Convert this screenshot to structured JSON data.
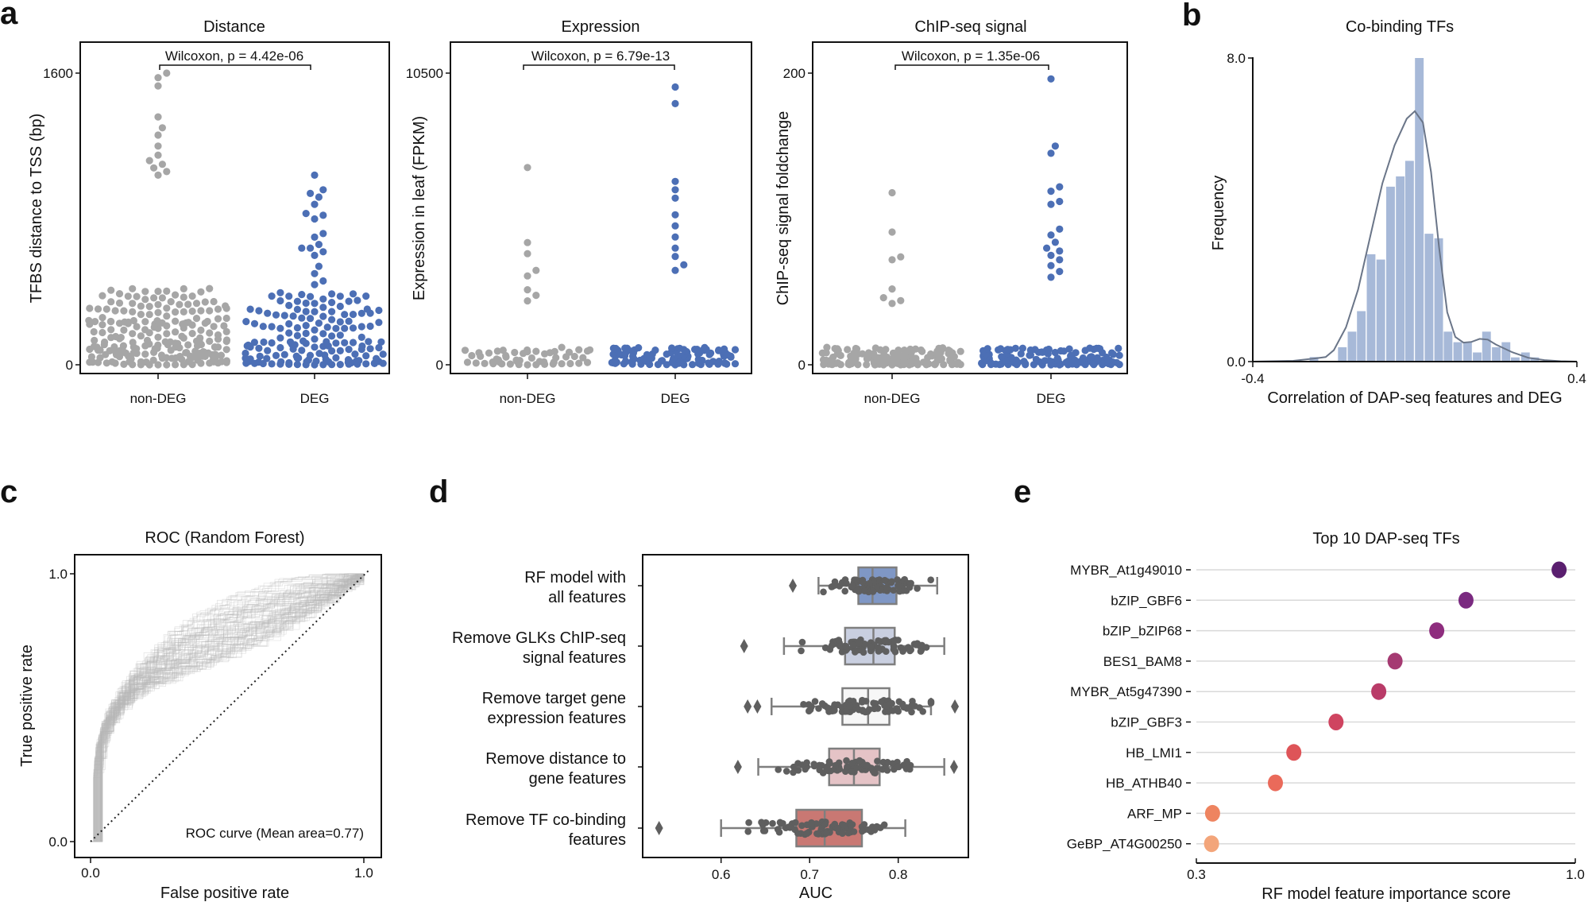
{
  "panel_letters": {
    "a": "a",
    "b": "b",
    "c": "c",
    "d": "d",
    "e": "e"
  },
  "colors": {
    "nonDEG": "#a6a6a6",
    "DEG": "#4c6fb5",
    "hist_bar": "#a7b9d8",
    "kde_line": "#6a7588",
    "roc_line": "#b8b8b8",
    "strip_point": "#5f5f5f",
    "box_edge": "#7f7f7f",
    "box_fills": [
      "#7f97c5",
      "#c9cfe0",
      "#f7f7f7",
      "#e5c3c6",
      "#c97873"
    ],
    "lollipop_colors": [
      "#5a1f6f",
      "#7a2a80",
      "#8e2d7e",
      "#a53a72",
      "#b93b68",
      "#cf4460",
      "#de5458",
      "#ea6a5a",
      "#ee8460",
      "#f3a57a"
    ],
    "lollipop_line": "#d9d9d9"
  },
  "chart_data": [
    {
      "id": "a1",
      "type": "scatter",
      "subtype": "swarm",
      "title": "Distance",
      "xlabel": "",
      "ylabel": "TFBS distance to TSS (bp)",
      "categories": [
        "non-DEG",
        "DEG"
      ],
      "ylim": [
        0,
        1600
      ],
      "yticks": [
        "0",
        "1600"
      ],
      "annotation": "Wilcoxon, p = 4.42e-06",
      "series": [
        {
          "name": "non-DEG",
          "values_summary": {
            "n": 230,
            "bulk_max": 420,
            "upper_points": [
              1040,
              1060,
              1080,
              1100,
              1120,
              1150,
              1200,
              1260,
              1300,
              1360,
              1530,
              1575,
              1600
            ]
          }
        },
        {
          "name": "DEG",
          "values_summary": {
            "n": 170,
            "bulk_max": 400,
            "upper_points": [
              440,
              460,
              500,
              540,
              600,
              620,
              640,
              640,
              660,
              700,
              720,
              800,
              820,
              830,
              880,
              920,
              940,
              960,
              1040
            ]
          }
        }
      ]
    },
    {
      "id": "a2",
      "type": "scatter",
      "subtype": "swarm",
      "title": "Expression",
      "xlabel": "",
      "ylabel": "Expression in leaf (FPKM)",
      "categories": [
        "non-DEG",
        "DEG"
      ],
      "ylim": [
        0,
        10500
      ],
      "yticks": [
        "0",
        "10500"
      ],
      "annotation": "Wilcoxon, p = 6.79e-13",
      "series": [
        {
          "name": "non-DEG",
          "values_summary": {
            "n": 60,
            "max": 7100,
            "upper_points": [
              2300,
              2500,
              2700,
              3200,
              3400,
              4000,
              4400,
              7100
            ]
          }
        },
        {
          "name": "DEG",
          "values_summary": {
            "n": 120,
            "max": 10000,
            "upper_points": [
              3400,
              3600,
              3900,
              4200,
              4600,
              5000,
              5400,
              6000,
              6300,
              6600,
              9400,
              10000
            ]
          }
        }
      ]
    },
    {
      "id": "a3",
      "type": "scatter",
      "subtype": "swarm",
      "title": "ChIP-seq signal",
      "xlabel": "",
      "ylabel": "ChIP-seq signal foldchange",
      "categories": [
        "non-DEG",
        "DEG"
      ],
      "ylim": [
        0,
        200
      ],
      "yticks": [
        "0",
        "200"
      ],
      "annotation": "Wilcoxon, p = 1.35e-06",
      "series": [
        {
          "name": "non-DEG",
          "values_summary": {
            "n": 150,
            "max": 118,
            "upper_points": [
              42,
              44,
              46,
              52,
              72,
              74,
              91,
              118
            ]
          }
        },
        {
          "name": "DEG",
          "values_summary": {
            "n": 150,
            "max": 196,
            "upper_points": [
              60,
              64,
              68,
              72,
              75,
              78,
              80,
              84,
              89,
              93,
              110,
              112,
              119,
              122,
              145,
              150,
              196
            ]
          }
        }
      ]
    },
    {
      "id": "b",
      "type": "bar",
      "subtype": "histogram_with_kde",
      "title": "Co-binding TFs",
      "xlabel": "Correlation of DAP-seq features and DEG",
      "ylabel": "Frequency",
      "xlim": [
        -0.4,
        0.4
      ],
      "ylim": [
        0.0,
        8.0
      ],
      "xticks": [
        "-0.4",
        "0.4"
      ],
      "yticks": [
        "0.0",
        "8.0"
      ],
      "bin_width": 0.0237,
      "x": [
        -0.249,
        -0.179,
        -0.155,
        -0.132,
        -0.108,
        -0.084,
        -0.06,
        -0.036,
        -0.013,
        0.011,
        0.035,
        0.059,
        0.082,
        0.106,
        0.13,
        0.154,
        0.177,
        0.201,
        0.225,
        0.248,
        0.273,
        0.296
      ],
      "values": [
        0.12,
        0.38,
        0.79,
        1.33,
        2.83,
        2.69,
        4.61,
        4.88,
        5.29,
        8.0,
        3.37,
        3.25,
        0.79,
        0.51,
        0.51,
        0.24,
        0.79,
        0.38,
        0.51,
        0.11,
        0.24,
        0.11
      ],
      "kde": {
        "x": [
          -0.4,
          -0.3,
          -0.25,
          -0.22,
          -0.2,
          -0.17,
          -0.14,
          -0.11,
          -0.08,
          -0.05,
          -0.02,
          0.0,
          0.02,
          0.04,
          0.06,
          0.08,
          0.1,
          0.12,
          0.14,
          0.16,
          0.18,
          0.2,
          0.24,
          0.28,
          0.32,
          0.36,
          0.4
        ],
        "y": [
          0.0,
          0.02,
          0.08,
          0.12,
          0.3,
          0.9,
          1.9,
          3.3,
          4.7,
          5.7,
          6.4,
          6.6,
          6.3,
          5.0,
          3.0,
          1.3,
          0.65,
          0.5,
          0.52,
          0.6,
          0.58,
          0.45,
          0.25,
          0.1,
          0.04,
          0.01,
          0.0
        ]
      }
    },
    {
      "id": "c",
      "type": "line",
      "subtype": "roc",
      "title": "ROC (Random Forest)",
      "xlabel": "False positive rate",
      "ylabel": "True positive rate",
      "xlim": [
        0.0,
        1.0
      ],
      "ylim": [
        0.0,
        1.0
      ],
      "xticks": [
        "0.0",
        "1.0"
      ],
      "yticks": [
        "0.0",
        "1.0"
      ],
      "annotation": "ROC curve (Mean area=0.77)",
      "mean_auc": 0.77,
      "n_curves": 100,
      "mean_curve": {
        "x": [
          0.0,
          0.01,
          0.02,
          0.05,
          0.1,
          0.15,
          0.2,
          0.3,
          0.4,
          0.5,
          0.6,
          0.7,
          0.8,
          0.9,
          1.0
        ],
        "y": [
          0.0,
          0.25,
          0.35,
          0.45,
          0.53,
          0.59,
          0.63,
          0.7,
          0.75,
          0.8,
          0.84,
          0.88,
          0.92,
          0.96,
          1.0
        ]
      },
      "diagonal": true
    },
    {
      "id": "d",
      "type": "box",
      "title": "",
      "xlabel": "AUC",
      "ylabel": "",
      "xlim": [
        0.52,
        0.88
      ],
      "xticks": [
        "0.6",
        "0.7",
        "0.8"
      ],
      "categories": [
        [
          "RF model with",
          "all features"
        ],
        [
          "Remove GLKs ChIP-seq",
          "signal features"
        ],
        [
          "Remove target gene",
          "expression features"
        ],
        [
          "Remove distance to",
          "gene features"
        ],
        [
          "Remove TF co-binding",
          "features"
        ]
      ],
      "boxes": [
        {
          "whislo": 0.71,
          "q1": 0.755,
          "med": 0.771,
          "q3": 0.798,
          "whishi": 0.844,
          "fliers": [
            0.681
          ]
        },
        {
          "whislo": 0.671,
          "q1": 0.74,
          "med": 0.772,
          "q3": 0.796,
          "whishi": 0.852,
          "fliers": [
            0.626
          ]
        },
        {
          "whislo": 0.657,
          "q1": 0.737,
          "med": 0.766,
          "q3": 0.79,
          "whishi": 0.837,
          "fliers": [
            0.63,
            0.641,
            0.864
          ]
        },
        {
          "whislo": 0.642,
          "q1": 0.722,
          "med": 0.75,
          "q3": 0.779,
          "whishi": 0.852,
          "fliers": [
            0.619,
            0.863
          ]
        },
        {
          "whislo": 0.6,
          "q1": 0.685,
          "med": 0.717,
          "q3": 0.759,
          "whishi": 0.808,
          "fliers": [
            0.53
          ]
        }
      ],
      "n_points_per_box": 80
    },
    {
      "id": "e",
      "type": "scatter",
      "subtype": "lollipop",
      "title": "Top 10 DAP-seq TFs",
      "xlabel": "RF model feature importance score",
      "ylabel": "",
      "xlim": [
        0.3,
        1.0
      ],
      "xticks": [
        "0.3",
        "1.0"
      ],
      "categories": [
        "MYBR_At1g49010",
        "bZIP_GBF6",
        "bZIP_bZIP68",
        "BES1_BAM8",
        "MYBR_At5g47390",
        "bZIP_GBF3",
        "HB_LMI1",
        "HB_ATHB40",
        "ARF_MP",
        "GeBP_AT4G00250"
      ],
      "values": [
        0.97,
        0.798,
        0.744,
        0.667,
        0.637,
        0.558,
        0.48,
        0.446,
        0.33,
        0.328
      ]
    }
  ]
}
